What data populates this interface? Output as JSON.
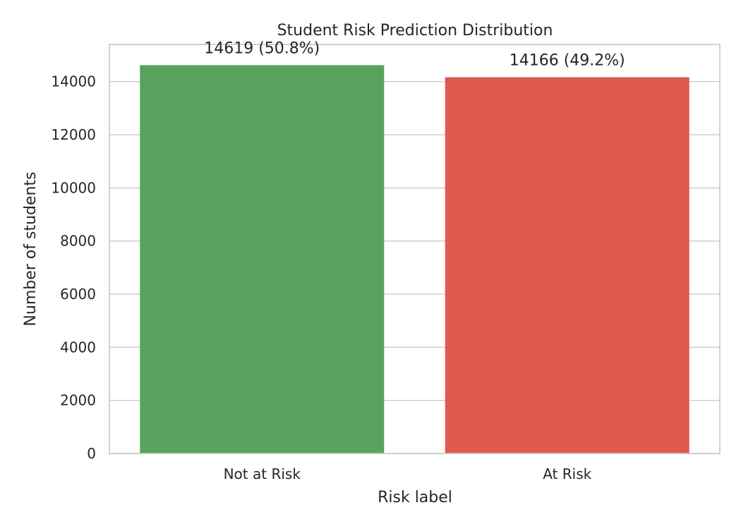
{
  "chart_data": {
    "type": "bar",
    "title": "Student Risk Prediction Distribution",
    "xlabel": "Risk label",
    "ylabel": "Number of students",
    "categories": [
      "Not at Risk",
      "At Risk"
    ],
    "values": [
      14619,
      14166
    ],
    "data_labels": [
      "14619 (50.8%)",
      "14166 (49.2%)"
    ],
    "bar_colors": [
      "#59a35e",
      "#df5a4f"
    ],
    "ylim": [
      0,
      15400
    ],
    "yticks": [
      0,
      2000,
      4000,
      6000,
      8000,
      10000,
      12000,
      14000
    ],
    "ytick_labels": [
      "0",
      "2000",
      "4000",
      "6000",
      "8000",
      "10000",
      "12000",
      "14000"
    ],
    "grid": true
  }
}
